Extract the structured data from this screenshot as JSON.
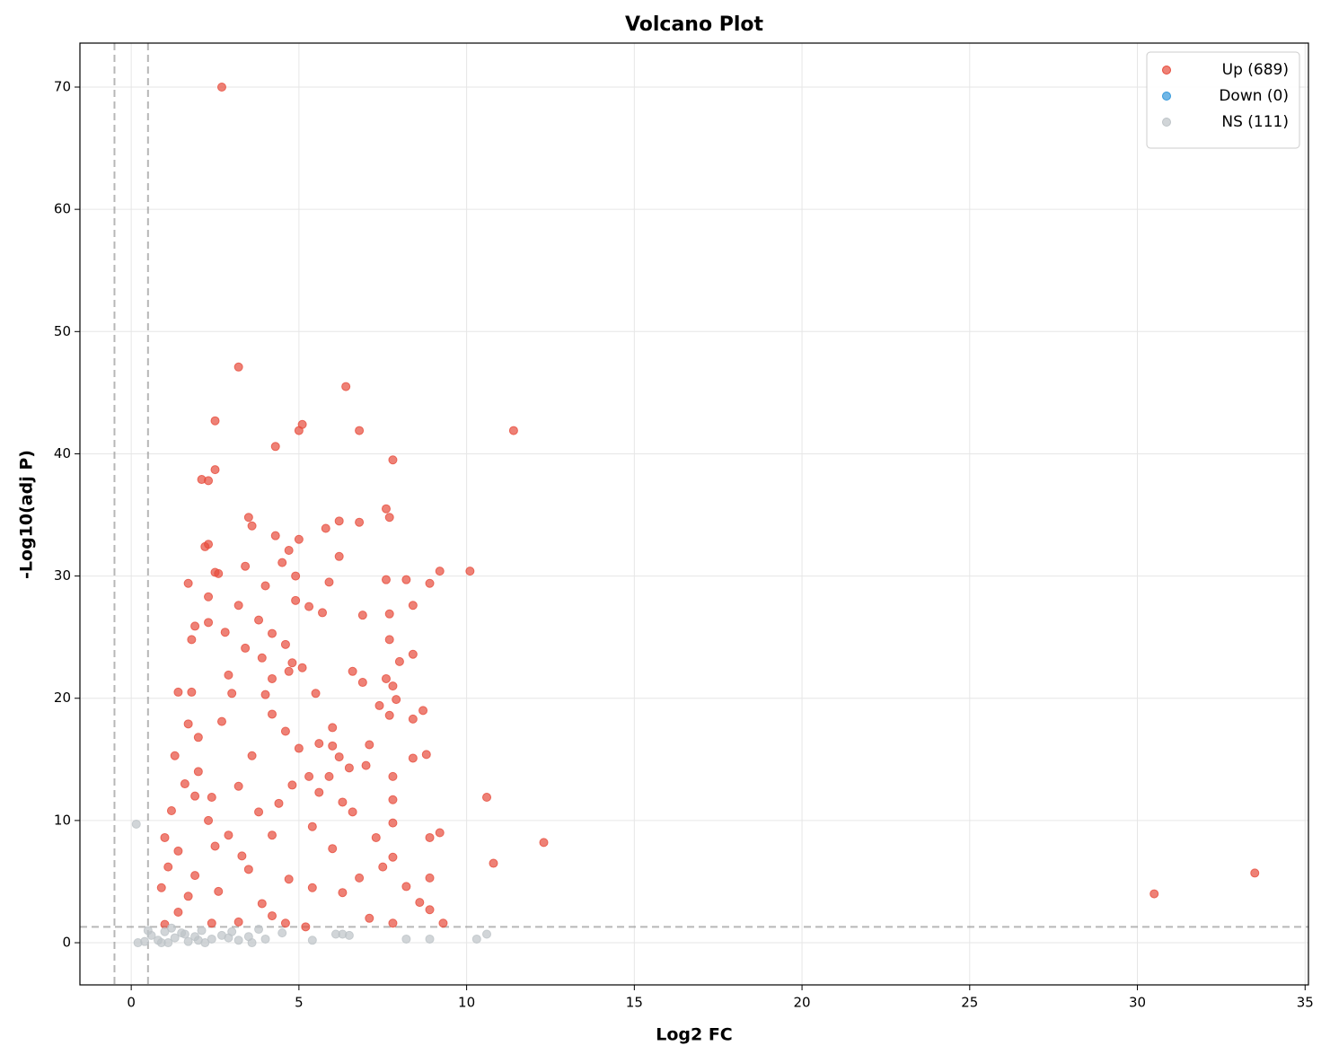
{
  "chart_data": {
    "type": "scatter",
    "title": "Volcano Plot",
    "xlabel": "Log2 FC",
    "ylabel": "-Log10(adj P)",
    "xlim": [
      -1.53,
      35.1
    ],
    "ylim": [
      -3.45,
      73.6
    ],
    "xticks": [
      0,
      5,
      10,
      15,
      20,
      25,
      30,
      35
    ],
    "yticks": [
      0,
      10,
      20,
      30,
      40,
      50,
      60,
      70
    ],
    "grid": true,
    "legend": "upper right",
    "vlines": [
      -0.5,
      0.5
    ],
    "hline": 1.3,
    "series": [
      {
        "name": "Up (689)",
        "color": "#e74c3c",
        "x": [
          2.7,
          3.2,
          6.4,
          2.5,
          5.1,
          4.3,
          5,
          6.8,
          11.4,
          7.8,
          2.5,
          2.1,
          2.3,
          3.5,
          3.6,
          7.6,
          7.7,
          6.2,
          6.8,
          5.8,
          4.3,
          5.0,
          2.3,
          2.2,
          4.7,
          6.2,
          4.5,
          3.4,
          2.5,
          2.6,
          4.9,
          10.1,
          9.2,
          1.7,
          4.0,
          5.9,
          7.6,
          8.2,
          8.9,
          4.9,
          2.3,
          3.2,
          5.3,
          5.7,
          8.4,
          6.9,
          7.7,
          3.8,
          2.3,
          1.9,
          2.8,
          4.2,
          7.7,
          1.8,
          3.4,
          4.6,
          8.4,
          3.9,
          8.0,
          4.8,
          5.1,
          6.6,
          4.7,
          2.9,
          4.2,
          7.6,
          6.9,
          7.8,
          1.4,
          3.0,
          4.0,
          5.5,
          7.9,
          1.8,
          7.4,
          8.7,
          7.7,
          4.2,
          8.4,
          2.7,
          6.0,
          4.6,
          1.7,
          2.0,
          5.6,
          7.1,
          6.0,
          5.0,
          6.2,
          8.8,
          8.4,
          1.3,
          3.6,
          6.5,
          7.0,
          2.0,
          5.3,
          7.8,
          5.9,
          1.6,
          3.2,
          4.8,
          5.6,
          1.9,
          2.4,
          6.3,
          10.6,
          7.8,
          4.4,
          1.2,
          3.8,
          6.6,
          2.3,
          5.4,
          7.8,
          9.2,
          1.0,
          2.9,
          4.2,
          7.3,
          8.9,
          12.3,
          2.5,
          6.0,
          1.4,
          3.3,
          7.8,
          10.8,
          1.1,
          3.5,
          7.5,
          1.9,
          4.7,
          6.8,
          8.9,
          33.5,
          0.9,
          2.6,
          5.4,
          8.2,
          30.5,
          1.7,
          3.9,
          6.3,
          8.6,
          1.4,
          4.2,
          7.1,
          8.9,
          1.0,
          3.2,
          5.2,
          7.8,
          9.3,
          2.4,
          4.6
        ],
        "y": [
          70,
          47.1,
          45.5,
          42.7,
          42.4,
          40.6,
          41.9,
          41.9,
          41.9,
          39.5,
          38.7,
          37.9,
          37.8,
          34.8,
          34.1,
          35.5,
          34.8,
          34.5,
          34.4,
          33.9,
          33.3,
          33.0,
          32.6,
          32.4,
          32.1,
          31.6,
          31.1,
          30.8,
          30.3,
          30.2,
          30.0,
          30.4,
          30.4,
          29.4,
          29.2,
          29.5,
          29.7,
          29.7,
          29.4,
          28.0,
          28.3,
          27.6,
          27.5,
          27.0,
          27.6,
          26.8,
          26.9,
          26.4,
          26.2,
          25.9,
          25.4,
          25.3,
          24.8,
          24.8,
          24.1,
          24.4,
          23.6,
          23.3,
          23.0,
          22.9,
          22.5,
          22.2,
          22.2,
          21.9,
          21.6,
          21.6,
          21.3,
          21.0,
          20.5,
          20.4,
          20.3,
          20.4,
          19.9,
          20.5,
          19.4,
          19.0,
          18.6,
          18.7,
          18.3,
          18.1,
          17.6,
          17.3,
          17.9,
          16.8,
          16.3,
          16.2,
          16.1,
          15.9,
          15.2,
          15.4,
          15.1,
          15.3,
          15.3,
          14.3,
          14.5,
          14.0,
          13.6,
          13.6,
          13.6,
          13.0,
          12.8,
          12.9,
          12.3,
          12.0,
          11.9,
          11.5,
          11.9,
          11.7,
          11.4,
          10.8,
          10.7,
          10.7,
          10.0,
          9.5,
          9.8,
          9.0,
          8.6,
          8.8,
          8.8,
          8.6,
          8.6,
          8.2,
          7.9,
          7.7,
          7.5,
          7.1,
          7.0,
          6.5,
          6.2,
          6.0,
          6.2,
          5.5,
          5.2,
          5.3,
          5.3,
          5.7,
          4.5,
          4.2,
          4.5,
          4.6,
          4.0,
          3.8,
          3.2,
          4.1,
          3.3,
          2.5,
          2.2,
          2.0,
          2.7,
          1.5,
          1.7,
          1.3,
          1.6,
          1.6,
          1.6,
          1.6
        ]
      },
      {
        "name": "Down (0)",
        "color": "#3498db",
        "x": [],
        "y": []
      },
      {
        "name": "NS (111)",
        "color": "#bdc3c7",
        "x": [
          0.15,
          0.2,
          0.4,
          0.6,
          0.8,
          1.0,
          1.1,
          1.3,
          1.5,
          1.7,
          1.9,
          2.1,
          2.2,
          2.4,
          2.7,
          3.0,
          3.2,
          3.5,
          3.8,
          4.0,
          4.5,
          5.4,
          6.1,
          6.3,
          6.5,
          8.2,
          8.9,
          10.3,
          10.6,
          0.5,
          0.9,
          1.2,
          1.6,
          2.0,
          2.9,
          3.6
        ],
        "y": [
          9.7,
          0.0,
          0.1,
          0.6,
          0.2,
          0.9,
          0.0,
          0.4,
          0.8,
          0.1,
          0.5,
          1.0,
          0.0,
          0.3,
          0.6,
          0.9,
          0.2,
          0.5,
          1.1,
          0.3,
          0.8,
          0.2,
          0.7,
          0.7,
          0.6,
          0.3,
          0.3,
          0.3,
          0.7,
          1.0,
          0.0,
          1.2,
          0.7,
          0.2,
          0.4,
          0.0
        ]
      }
    ]
  }
}
